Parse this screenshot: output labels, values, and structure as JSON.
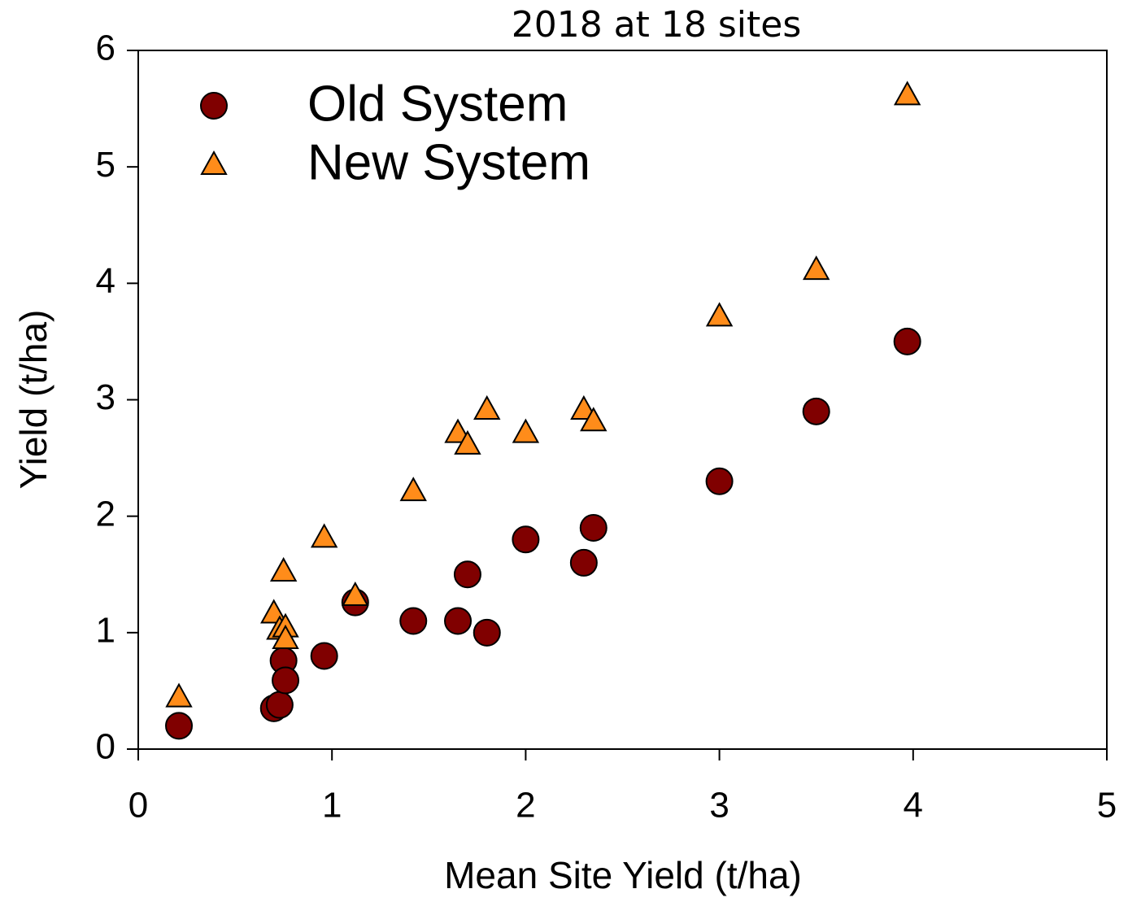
{
  "chart_data": {
    "type": "scatter",
    "title": "2018 at 18 sites",
    "xlabel": "Mean Site Yield (t/ha)",
    "ylabel": "Yield (t/ha)",
    "xlim": [
      0,
      5
    ],
    "xticks": [
      0,
      1,
      2,
      3,
      4,
      5
    ],
    "ylim": [
      0,
      6
    ],
    "yticks": [
      0,
      1,
      2,
      3,
      4,
      5,
      6
    ],
    "legend": "upper left",
    "series": [
      {
        "name": "Old System",
        "color": "#800000",
        "marker": "circle",
        "x": [
          0.21,
          0.7,
          0.73,
          0.75,
          0.76,
          0.96,
          1.12,
          1.42,
          1.65,
          1.7,
          1.8,
          2.0,
          2.3,
          2.35,
          3.0,
          3.5,
          3.97
        ],
        "values": [
          0.2,
          0.35,
          0.38,
          0.76,
          0.59,
          0.8,
          1.26,
          1.1,
          1.1,
          1.5,
          1.0,
          1.8,
          1.6,
          1.9,
          2.3,
          2.9,
          3.5
        ]
      },
      {
        "name": "New System",
        "color": "#ff8c1a",
        "marker": "triangle",
        "x": [
          0.21,
          0.7,
          0.73,
          0.76,
          0.76,
          0.75,
          0.96,
          1.12,
          1.42,
          1.65,
          1.7,
          1.8,
          2.0,
          2.3,
          2.35,
          3.0,
          3.5,
          3.97
        ],
        "values": [
          0.45,
          1.17,
          1.03,
          1.05,
          0.95,
          1.53,
          1.82,
          1.32,
          2.22,
          2.72,
          2.62,
          2.92,
          2.72,
          2.92,
          2.82,
          3.72,
          4.12,
          5.62
        ]
      }
    ]
  }
}
